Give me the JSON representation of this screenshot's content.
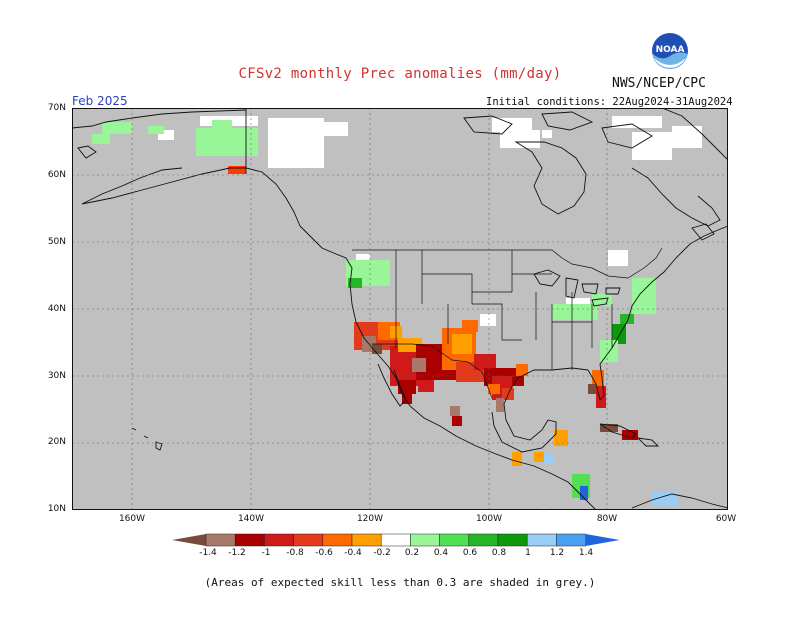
{
  "header": {
    "title": "CFSv2 monthly Prec anomalies (mm/day)",
    "agency": "NWS/NCEP/CPC",
    "month": "Feb 2025",
    "initial_conditions": "Initial conditions: 22Aug2024-31Aug2024",
    "logo_text": "NOAA"
  },
  "axes": {
    "lat_labels": [
      "70N",
      "60N",
      "50N",
      "40N",
      "30N",
      "20N",
      "10N"
    ],
    "lon_labels": [
      "160W",
      "140W",
      "120W",
      "100W",
      "80W",
      "60W"
    ]
  },
  "colorbar": {
    "ticks": [
      "-1.4",
      "-1.2",
      "-1",
      "-0.8",
      "-0.6",
      "-0.4",
      "-0.2",
      "0.2",
      "0.4",
      "0.6",
      "0.8",
      "1",
      "1.2",
      "1.4"
    ],
    "colors": [
      "#7a4a3a",
      "#a8786a",
      "#aa0000",
      "#d01a1a",
      "#e23a1a",
      "#ff6a00",
      "#ffa000",
      "#ffffff",
      "#98f598",
      "#52e052",
      "#28b428",
      "#0c9a0c",
      "#98cdf5",
      "#4aa0f0",
      "#1e64dc"
    ]
  },
  "footer": "(Areas of expected skill less than 0.3 are shaded in grey.)",
  "colors": {
    "map_grey": "#c0c0c0",
    "title_red": "#d1322e",
    "month_blue": "#2f3fb8"
  }
}
